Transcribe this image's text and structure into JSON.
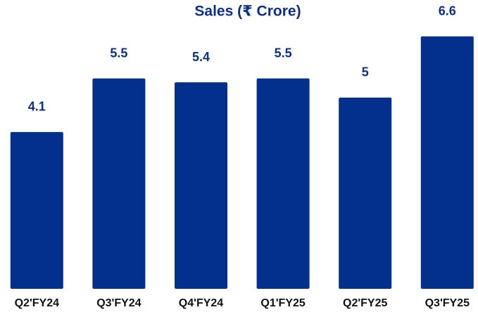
{
  "chart_data": {
    "type": "bar",
    "title": "Sales (₹ Crore)",
    "categories": [
      "Q2'FY24",
      "Q3'FY24",
      "Q4'FY24",
      "Q1'FY25",
      "Q2'FY25",
      "Q3'FY25"
    ],
    "values": [
      4.1,
      5.5,
      5.4,
      5.5,
      5,
      6.6
    ],
    "color": "#03308c",
    "ylim": [
      0,
      7
    ]
  }
}
